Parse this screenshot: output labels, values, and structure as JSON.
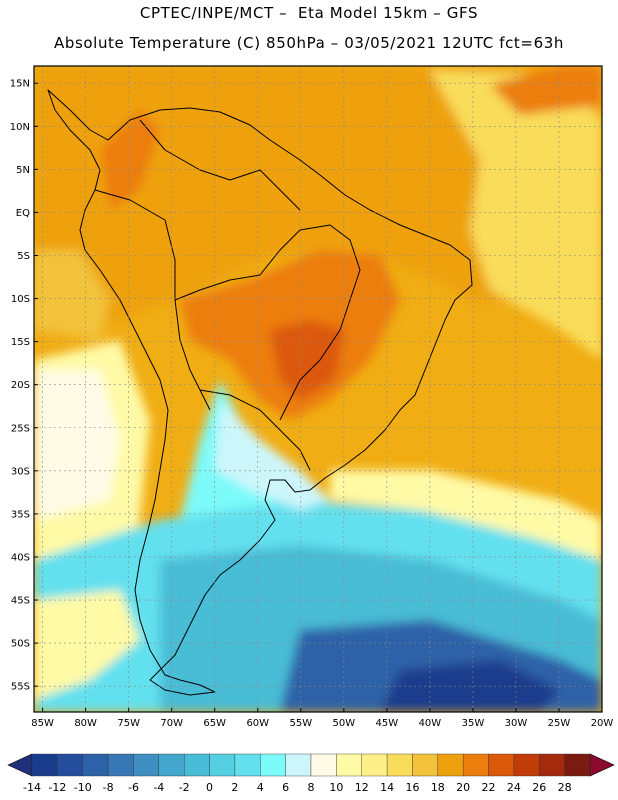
{
  "header": {
    "line1": "CPTEC/INPE/MCT –  Eta Model 15km – GFS",
    "line2": "Absolute Temperature (C) 850hPa – 03/05/2021 12UTC fct=63h"
  },
  "map": {
    "lat_labels": [
      "15N",
      "10N",
      "5N",
      "EQ",
      "5S",
      "10S",
      "15S",
      "20S",
      "25S",
      "30S",
      "35S",
      "40S",
      "45S",
      "50S",
      "55S"
    ],
    "lat_values": [
      15,
      10,
      5,
      0,
      -5,
      -10,
      -15,
      -20,
      -25,
      -30,
      -35,
      -40,
      -45,
      -50,
      -55
    ],
    "lon_labels": [
      "85W",
      "80W",
      "75W",
      "70W",
      "65W",
      "60W",
      "55W",
      "50W",
      "45W",
      "40W",
      "35W",
      "30W",
      "25W",
      "20W"
    ],
    "lon_values": [
      -85,
      -80,
      -75,
      -70,
      -65,
      -60,
      -55,
      -50,
      -45,
      -40,
      -35,
      -30,
      -25,
      -20
    ],
    "lat_range": [
      -58,
      17
    ],
    "lon_range": [
      -86,
      -20
    ]
  },
  "colorbar": {
    "labels": [
      "-14",
      "-12",
      "-10",
      "-8",
      "-6",
      "-4",
      "-2",
      "0",
      "2",
      "4",
      "6",
      "8",
      "10",
      "12",
      "14",
      "16",
      "18",
      "20",
      "22",
      "24",
      "26",
      "28"
    ],
    "colors": [
      "#1a3c8c",
      "#244d9c",
      "#2e62a8",
      "#3777b5",
      "#3f8ec2",
      "#44a6cc",
      "#48bcd6",
      "#55cfe2",
      "#63e0ee",
      "#7dfafa",
      "#cdf6fb",
      "#fffbe6",
      "#fffaa6",
      "#fdf088",
      "#f9dc5a",
      "#f2c23a",
      "#eea10e",
      "#ec7e0e",
      "#db590a",
      "#c23c0a",
      "#a32a0c",
      "#7a1a10"
    ],
    "over_color": "#8c0a2e",
    "under_color": "#20307a"
  }
}
